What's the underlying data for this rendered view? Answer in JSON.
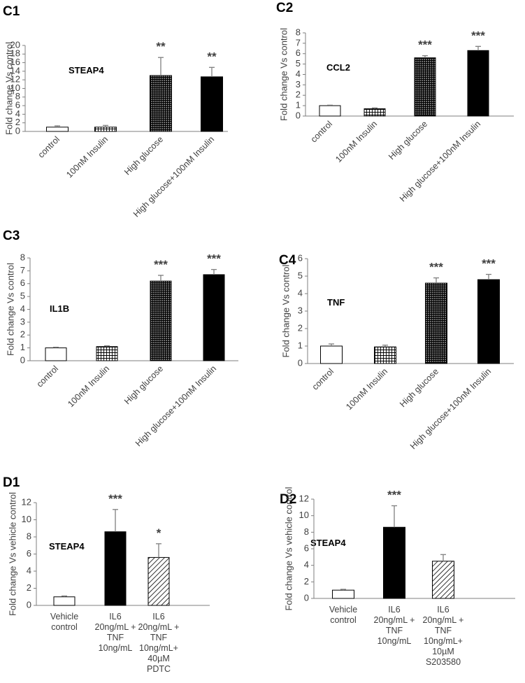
{
  "chart_data": [
    {
      "type": "bar",
      "panel_label": "C1",
      "title": "STEAP4",
      "ylabel": "Fold change Vs  control",
      "ylim": [
        0,
        20
      ],
      "yticks": [
        0,
        2,
        4,
        6,
        8,
        10,
        12,
        14,
        16,
        18,
        20
      ],
      "categories": [
        "control",
        "100nM Insulin",
        "High glucose",
        "High glucose+100nM Insulin"
      ],
      "values": [
        1,
        1,
        13,
        12.7
      ],
      "errors": [
        0.3,
        0.4,
        4.2,
        2.2
      ],
      "patterns": [
        "open",
        "grid",
        "dense",
        "solid"
      ],
      "significance": [
        "",
        "",
        "**",
        "**"
      ]
    },
    {
      "type": "bar",
      "panel_label": "C2",
      "title": "CCL2",
      "ylabel": "Fold change  Vs control",
      "ylim": [
        0,
        8
      ],
      "yticks": [
        0,
        1,
        2,
        3,
        4,
        5,
        6,
        7,
        8
      ],
      "categories": [
        "control",
        "100nM Insulin",
        "High glucose",
        "High glucose+100nM Insulin"
      ],
      "values": [
        1,
        0.7,
        5.6,
        6.3
      ],
      "errors": [
        0.05,
        0.08,
        0.2,
        0.4
      ],
      "patterns": [
        "open",
        "grid",
        "dense",
        "solid"
      ],
      "significance": [
        "",
        "",
        "***",
        "***"
      ]
    },
    {
      "type": "bar",
      "panel_label": "C3",
      "title": "IL1B",
      "ylabel": "Fold change Vs control",
      "ylim": [
        0,
        8
      ],
      "yticks": [
        0,
        1,
        2,
        3,
        4,
        5,
        6,
        7,
        8
      ],
      "categories": [
        "control",
        "100nM Insulin",
        "High glucose",
        "High glucose+100nM Insulin"
      ],
      "values": [
        1,
        1.1,
        6.2,
        6.7
      ],
      "errors": [
        0.05,
        0.06,
        0.45,
        0.4
      ],
      "patterns": [
        "open",
        "grid",
        "dense",
        "solid"
      ],
      "significance": [
        "",
        "",
        "***",
        "***"
      ]
    },
    {
      "type": "bar",
      "panel_label": "C4",
      "title": "TNF",
      "ylabel": "Fold change Vs  control",
      "ylim": [
        0,
        6
      ],
      "yticks": [
        0,
        1,
        2,
        3,
        4,
        5,
        6
      ],
      "categories": [
        "control",
        "100nM Insulin",
        "High glucose",
        "High glucose+100nM Insulin"
      ],
      "values": [
        1,
        0.95,
        4.6,
        4.8
      ],
      "errors": [
        0.12,
        0.1,
        0.3,
        0.3
      ],
      "patterns": [
        "open",
        "grid",
        "dense",
        "solid"
      ],
      "significance": [
        "",
        "",
        "***",
        "***"
      ]
    },
    {
      "type": "bar",
      "panel_label": "D1",
      "title": "STEAP4",
      "ylabel": "Fold change Vs vehicle control",
      "ylim": [
        0,
        12
      ],
      "yticks": [
        0,
        2,
        4,
        6,
        8,
        10,
        12
      ],
      "categories": [
        [
          "Vehicle",
          "control"
        ],
        [
          "IL6",
          "20ng/mL +",
          "TNF",
          "10ng/mL"
        ],
        [
          "IL6",
          "20ng/mL +",
          "TNF",
          "10ng/mL+",
          "40µM",
          "PDTC"
        ]
      ],
      "values": [
        1,
        8.6,
        5.6
      ],
      "errors": [
        0.1,
        2.6,
        1.6
      ],
      "patterns": [
        "open",
        "solid",
        "hatch"
      ],
      "significance": [
        "",
        "***",
        "*"
      ]
    },
    {
      "type": "bar",
      "panel_label": "D2",
      "title": "STEAP4",
      "ylabel": "Fold change Vs vehicle control",
      "ylim": [
        0,
        12
      ],
      "yticks": [
        0,
        2,
        4,
        6,
        8,
        10,
        12
      ],
      "categories": [
        [
          "Vehicle",
          "control"
        ],
        [
          "IL6",
          "20ng/mL +",
          "TNF",
          "10ng/mL"
        ],
        [
          "IL6",
          "20ng/mL +",
          "TNF",
          "10ng/mL+",
          "10µM",
          "S203580"
        ]
      ],
      "values": [
        1,
        8.6,
        4.5
      ],
      "errors": [
        0.1,
        2.6,
        0.8
      ],
      "patterns": [
        "open",
        "solid",
        "hatch"
      ],
      "significance": [
        "",
        "***",
        ""
      ]
    }
  ]
}
